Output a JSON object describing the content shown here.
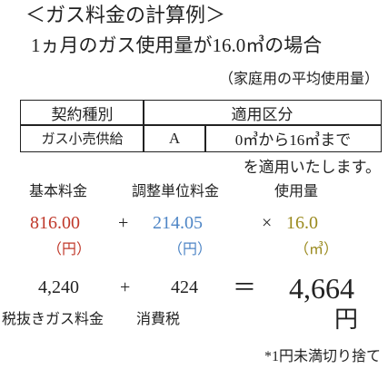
{
  "header": {
    "title": "＜ガス料金の計算例＞",
    "subtitle": "1ヵ月のガス使用量が16.0㎥の場合",
    "note": "（家庭用の平均使用量）"
  },
  "table": {
    "header": [
      "契約種別",
      "適用区分"
    ],
    "rows": [
      [
        "ガス小売供給",
        "A",
        "0㎥から16㎥まで"
      ]
    ]
  },
  "applied": "を適用いたします。",
  "formula": {
    "labels": [
      "基本料金",
      "調整単位料金",
      "使用量"
    ],
    "values": [
      "816.00",
      "+",
      "214.05",
      "×",
      "16.0"
    ],
    "units": [
      "（円）",
      "（円）",
      "（㎥）"
    ],
    "result": [
      "4,240",
      "+",
      "424",
      "＝",
      "4,664"
    ],
    "result_labels": [
      "税抜きガス料金",
      "消費税",
      "円"
    ]
  },
  "footnote": "*1円未満切り捨て"
}
